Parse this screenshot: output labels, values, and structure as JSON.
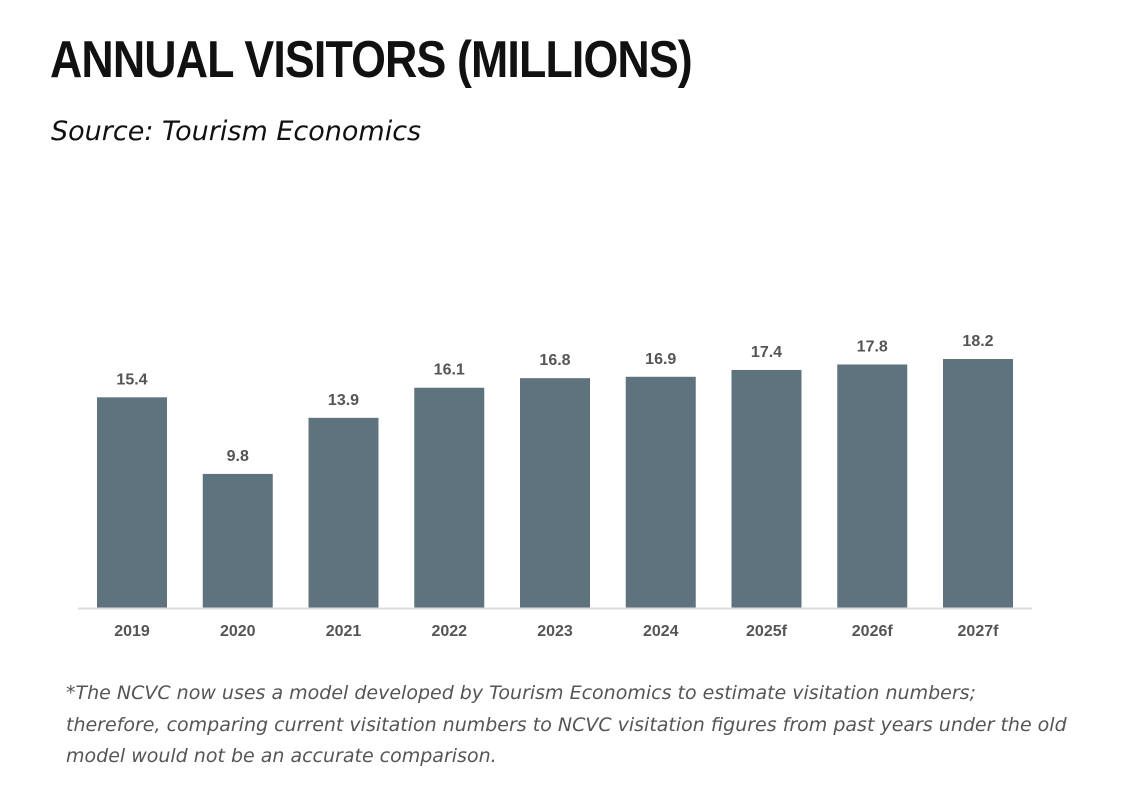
{
  "header": {
    "title": "ANNUAL VISITORS (MILLIONS)",
    "subtitle": "Source: Tourism Economics"
  },
  "footnote": "*The NCVC now uses a model developed by Tourism Economics to estimate visitation numbers; therefore, comparing current visitation numbers to NCVC visitation figures from past years under the old model would not be an accurate comparison.",
  "colors": {
    "bar": "#5f737e",
    "axis": "#dddddd",
    "label": "#555555"
  },
  "chart_data": {
    "type": "bar",
    "categories": [
      "2019",
      "2020",
      "2021",
      "2022",
      "2023",
      "2024",
      "2025f",
      "2026f",
      "2027f"
    ],
    "values": [
      15.4,
      9.8,
      13.9,
      16.1,
      16.8,
      16.9,
      17.4,
      17.8,
      18.2
    ],
    "data_labels": [
      "15.4",
      "9.8",
      "13.9",
      "16.1",
      "16.8",
      "16.9",
      "17.4",
      "17.8",
      "18.2"
    ],
    "xlabel": "",
    "ylabel": "",
    "ylim": [
      0,
      18.2
    ],
    "grid": false,
    "legend": "none"
  }
}
